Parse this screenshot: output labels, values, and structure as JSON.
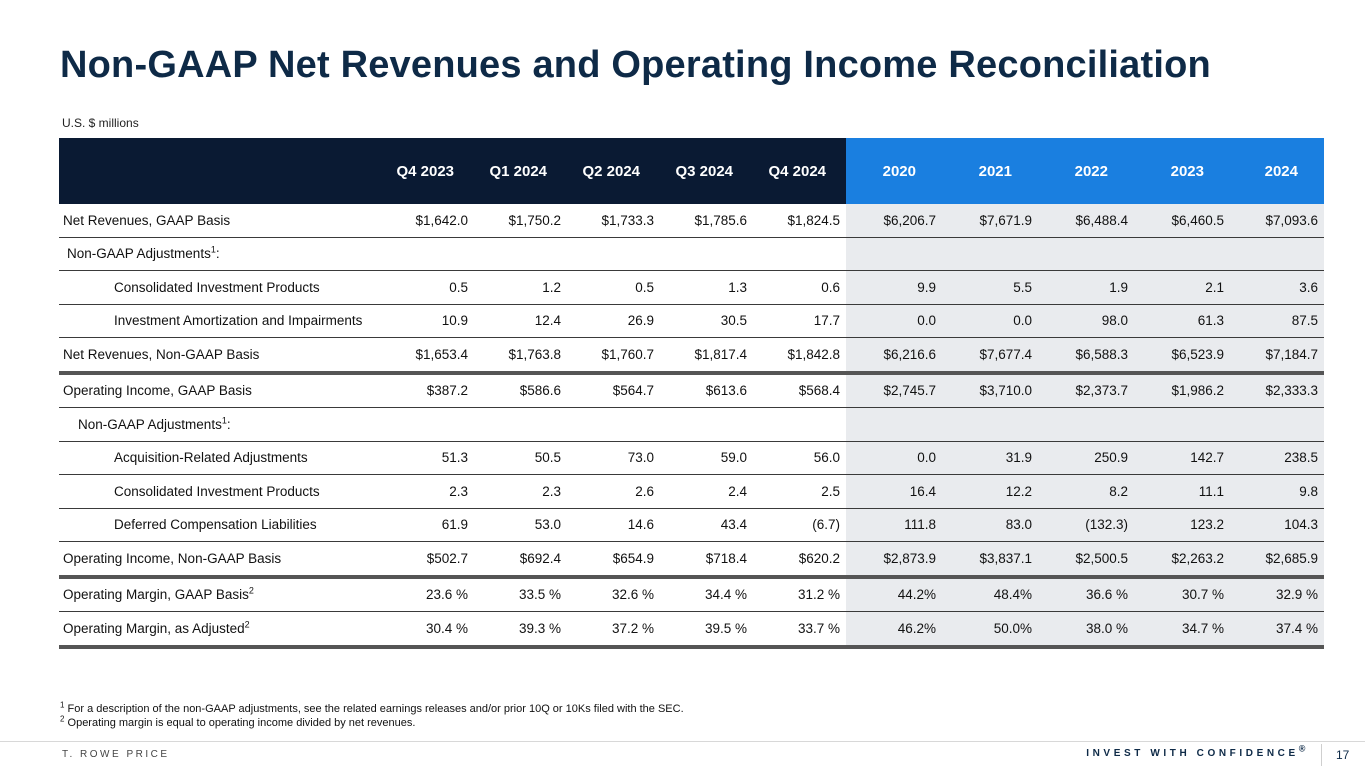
{
  "title": "Non-GAAP Net Revenues and Operating Income Reconciliation",
  "units": "U.S. $ millions",
  "columns": {
    "quarters": [
      "Q4 2023",
      "Q1 2024",
      "Q2 2024",
      "Q3 2024",
      "Q4 2024"
    ],
    "years": [
      "2020",
      "2021",
      "2022",
      "2023",
      "2024"
    ]
  },
  "rows": [
    {
      "label": "Net Revenues, GAAP Basis",
      "sup": "",
      "values": [
        "$1,642.0",
        "$1,750.2",
        "$1,733.3",
        "$1,785.6",
        "$1,824.5",
        "$6,206.7",
        "$7,671.9",
        "$6,488.4",
        "$6,460.5",
        "$7,093.6"
      ]
    },
    {
      "label": "Non-GAAP Adjustments",
      "sup": "1",
      "tail": ":",
      "values": [
        "",
        "",
        "",
        "",
        "",
        "",
        "",
        "",
        "",
        ""
      ]
    },
    {
      "label": "Consolidated Investment Products",
      "sup": "",
      "values": [
        "0.5",
        "1.2",
        "0.5",
        "1.3",
        "0.6",
        "9.9",
        "5.5",
        "1.9",
        "2.1",
        "3.6"
      ]
    },
    {
      "label": "Investment Amortization and Impairments",
      "sup": "",
      "values": [
        "10.9",
        "12.4",
        "26.9",
        "30.5",
        "17.7",
        "0.0",
        "0.0",
        "98.0",
        "61.3",
        "87.5"
      ]
    },
    {
      "label": "Net Revenues, Non-GAAP Basis",
      "sup": "",
      "values": [
        "$1,653.4",
        "$1,763.8",
        "$1,760.7",
        "$1,817.4",
        "$1,842.8",
        "$6,216.6",
        "$7,677.4",
        "$6,588.3",
        "$6,523.9",
        "$7,184.7"
      ]
    },
    {
      "label": "Operating Income, GAAP Basis",
      "sup": "",
      "values": [
        "$387.2",
        "$586.6",
        "$564.7",
        "$613.6",
        "$568.4",
        "$2,745.7",
        "$3,710.0",
        "$2,373.7",
        "$1,986.2",
        "$2,333.3"
      ]
    },
    {
      "label": "Non-GAAP Adjustments",
      "sup": "1",
      "tail": ":",
      "values": [
        "",
        "",
        "",
        "",
        "",
        "",
        "",
        "",
        "",
        ""
      ]
    },
    {
      "label": "Acquisition-Related Adjustments",
      "sup": "",
      "values": [
        "51.3",
        "50.5",
        "73.0",
        "59.0",
        "56.0",
        "0.0",
        "31.9",
        "250.9",
        "142.7",
        "238.5"
      ]
    },
    {
      "label": "Consolidated Investment Products",
      "sup": "",
      "values": [
        "2.3",
        "2.3",
        "2.6",
        "2.4",
        "2.5",
        "16.4",
        "12.2",
        "8.2",
        "11.1",
        "9.8"
      ]
    },
    {
      "label": "Deferred Compensation Liabilities",
      "sup": "",
      "values": [
        "61.9",
        "53.0",
        "14.6",
        "43.4",
        "(6.7)",
        "111.8",
        "83.0",
        "(132.3)",
        "123.2",
        "104.3"
      ]
    },
    {
      "label": "Operating Income, Non-GAAP Basis",
      "sup": "",
      "values": [
        "$502.7",
        "$692.4",
        "$654.9",
        "$718.4",
        "$620.2",
        "$2,873.9",
        "$3,837.1",
        "$2,500.5",
        "$2,263.2",
        "$2,685.9"
      ]
    },
    {
      "label": "Operating Margin, GAAP Basis",
      "sup": "2",
      "values": [
        "23.6 %",
        "33.5 %",
        "32.6 %",
        "34.4 %",
        "31.2 %",
        "44.2%",
        "48.4%",
        "36.6 %",
        "30.7 %",
        "32.9 %"
      ]
    },
    {
      "label": "Operating Margin, as Adjusted",
      "sup": "2",
      "values": [
        "30.4 %",
        "39.3 %",
        "37.2 %",
        "39.5 %",
        "33.7 %",
        "46.2%",
        "50.0%",
        "38.0 %",
        "34.7 %",
        "37.4 %"
      ]
    }
  ],
  "footnotes": [
    {
      "mark": "1",
      "text": "For a description of the non-GAAP adjustments, see the related earnings releases and/or prior 10Q or 10Ks filed with the SEC."
    },
    {
      "mark": "2",
      "text": "Operating margin is equal to operating income divided by net revenues."
    }
  ],
  "footer": {
    "brand": "T. ROWE PRICE",
    "tagline": "INVEST WITH CONFIDENCE",
    "tagline_mark": "®",
    "page_number": "17"
  },
  "colors": {
    "title": "#0e2a47",
    "header_dark": "#0a1a33",
    "header_blue": "#1a7fe0",
    "annual_shade": "#e9ebee"
  }
}
